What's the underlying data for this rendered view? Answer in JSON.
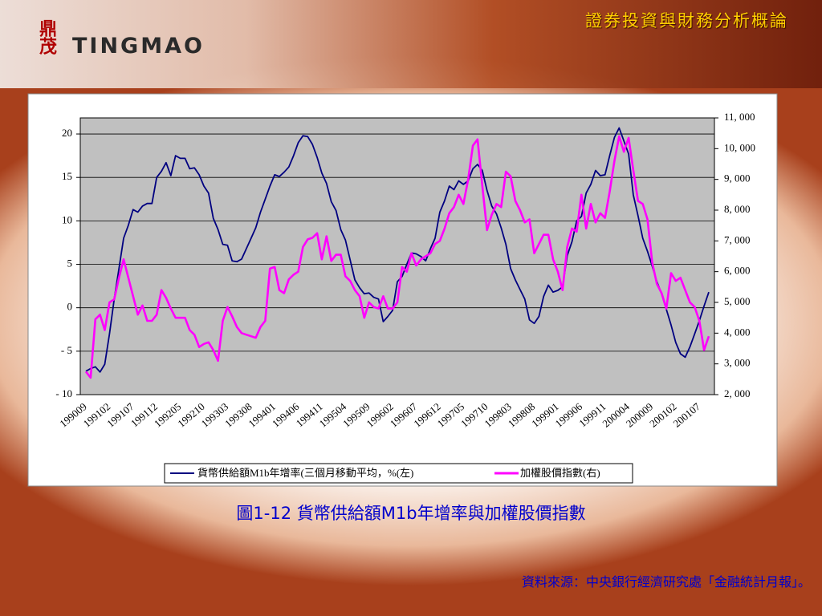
{
  "slide": {
    "title": "證券投資與財務分析概論",
    "logo_mark": "鼎茂",
    "logo_text": "TINGMAO",
    "caption": "圖1-12 貨幣供給額M1b年增率與加權股價指數",
    "source": "資料來源：中央銀行經濟研究處「金融統計月報」。"
  },
  "chart_data": {
    "type": "line",
    "grid": true,
    "legend": "bottom",
    "categories": [
      "199009",
      null,
      null,
      null,
      null,
      "199102",
      null,
      null,
      null,
      null,
      "199107",
      null,
      null,
      null,
      null,
      "199112",
      null,
      null,
      null,
      null,
      "199205",
      null,
      null,
      null,
      null,
      "199210",
      null,
      null,
      null,
      null,
      "199303",
      null,
      null,
      null,
      null,
      "199308",
      null,
      null,
      null,
      null,
      "199401",
      null,
      null,
      null,
      null,
      "199406",
      null,
      null,
      null,
      null,
      "199411",
      null,
      null,
      null,
      null,
      "199504",
      null,
      null,
      null,
      null,
      "199509",
      null,
      null,
      null,
      null,
      "199602",
      null,
      null,
      null,
      null,
      "199607",
      null,
      null,
      null,
      null,
      "199612",
      null,
      null,
      null,
      null,
      "199705",
      null,
      null,
      null,
      null,
      "199710",
      null,
      null,
      null,
      null,
      "199803",
      null,
      null,
      null,
      null,
      "199808",
      null,
      null,
      null,
      null,
      "199901",
      null,
      null,
      null,
      null,
      "199906",
      null,
      null,
      null,
      null,
      "199911",
      null,
      null,
      null,
      null,
      "200004",
      null,
      null,
      null,
      null,
      "200009",
      null,
      null,
      null,
      null,
      "200102",
      null,
      null,
      null,
      null,
      "200107",
      null,
      null
    ],
    "ylim": [
      -10,
      21.85
    ],
    "yticks": [
      {
        "value": -10,
        "label": "- 10"
      },
      {
        "value": -5,
        "label": "- 5"
      },
      0,
      5,
      10,
      15,
      20
    ],
    "y2lim": [
      2000,
      11000
    ],
    "y2ticks": [
      {
        "value": 2000,
        "label": "2, 000"
      },
      {
        "value": 3000,
        "label": "3, 000"
      },
      {
        "value": 4000,
        "label": "4, 000"
      },
      {
        "value": 5000,
        "label": "5, 000"
      },
      {
        "value": 6000,
        "label": "6, 000"
      },
      {
        "value": 7000,
        "label": "7, 000"
      },
      {
        "value": 8000,
        "label": "8, 000"
      },
      {
        "value": 9000,
        "label": "9, 000"
      },
      {
        "value": 10000,
        "label": "10, 000"
      },
      {
        "value": 11000,
        "label": "11, 000"
      }
    ],
    "series": [
      {
        "name": "貨幣供給額M1b年增率(三個月移動平均，%(左)",
        "color": "#000080",
        "axis": "y",
        "values": [
          -7.3,
          -7.0,
          -6.8,
          -7.4,
          -6.5,
          -3,
          1,
          4.5,
          8,
          9.5,
          11.3,
          11,
          11.7,
          12,
          12,
          15,
          15.7,
          16.7,
          15.2,
          17.5,
          17.2,
          17.2,
          16,
          16.1,
          15.3,
          14,
          13.2,
          10.3,
          9,
          7.3,
          7.2,
          5.4,
          5.3,
          5.6,
          6.8,
          8,
          9.2,
          11,
          12.5,
          14,
          15.3,
          15.1,
          15.6,
          16.2,
          17.5,
          19,
          19.8,
          19.7,
          18.8,
          17.3,
          15.5,
          14.3,
          12.2,
          11.2,
          9,
          7.8,
          5.5,
          3.2,
          2.3,
          1.6,
          1.7,
          1.2,
          1,
          -1.6,
          -1,
          -0.3,
          3,
          3.6,
          5,
          6.3,
          6.2,
          5.9,
          5.4,
          6.8,
          8,
          11,
          12.3,
          14,
          13.6,
          14.6,
          14.2,
          14.6,
          16,
          16.5,
          15.8,
          13.5,
          11.7,
          10.8,
          9.2,
          7.3,
          4.5,
          3.2,
          2.1,
          1,
          -1.4,
          -1.8,
          -1,
          1.3,
          2.6,
          1.8,
          2,
          2.4,
          6,
          7.6,
          10,
          10.5,
          13.2,
          14.2,
          15.8,
          15.2,
          15.3,
          17.5,
          19.6,
          20.7,
          19.2,
          17.7,
          13,
          10.6,
          8,
          6.5,
          4.8,
          3,
          1.6,
          -0.2,
          -2,
          -4,
          -5.3,
          -5.7,
          -4.5,
          -3,
          -1.5,
          0.2,
          1.8
        ]
      },
      {
        "name": "加權股價指數(右)",
        "color": "#ff00ff",
        "axis": "y2",
        "values": [
          2750,
          2550,
          4450,
          4600,
          4100,
          5000,
          5100,
          5800,
          6400,
          5800,
          5200,
          4600,
          4900,
          4400,
          4400,
          4600,
          5400,
          5150,
          4800,
          4500,
          4500,
          4500,
          4100,
          3950,
          3550,
          3650,
          3700,
          3450,
          3100,
          4400,
          4850,
          4550,
          4200,
          4000,
          3950,
          3900,
          3850,
          4200,
          4400,
          6100,
          6150,
          5400,
          5300,
          5750,
          5900,
          6000,
          6800,
          7050,
          7100,
          7250,
          6400,
          7150,
          6350,
          6550,
          6550,
          5850,
          5700,
          5400,
          5200,
          4500,
          5000,
          4850,
          4800,
          5200,
          4800,
          4800,
          5000,
          6150,
          6000,
          6600,
          6200,
          6400,
          6500,
          6600,
          6900,
          7000,
          7400,
          7900,
          8100,
          8500,
          8200,
          9000,
          10100,
          10300,
          8800,
          7350,
          7850,
          8200,
          8100,
          9250,
          9100,
          8300,
          8000,
          7600,
          7700,
          6600,
          6900,
          7200,
          7200,
          6400,
          6000,
          5400,
          6800,
          7400,
          7300,
          8500,
          7400,
          8200,
          7600,
          7900,
          7750,
          8600,
          9600,
          10400,
          9900,
          10350,
          9300,
          8300,
          8200,
          7700,
          6300,
          5600,
          5300,
          4800,
          5950,
          5700,
          5800,
          5400,
          5000,
          4850,
          4400,
          3450,
          3900
        ]
      }
    ]
  }
}
